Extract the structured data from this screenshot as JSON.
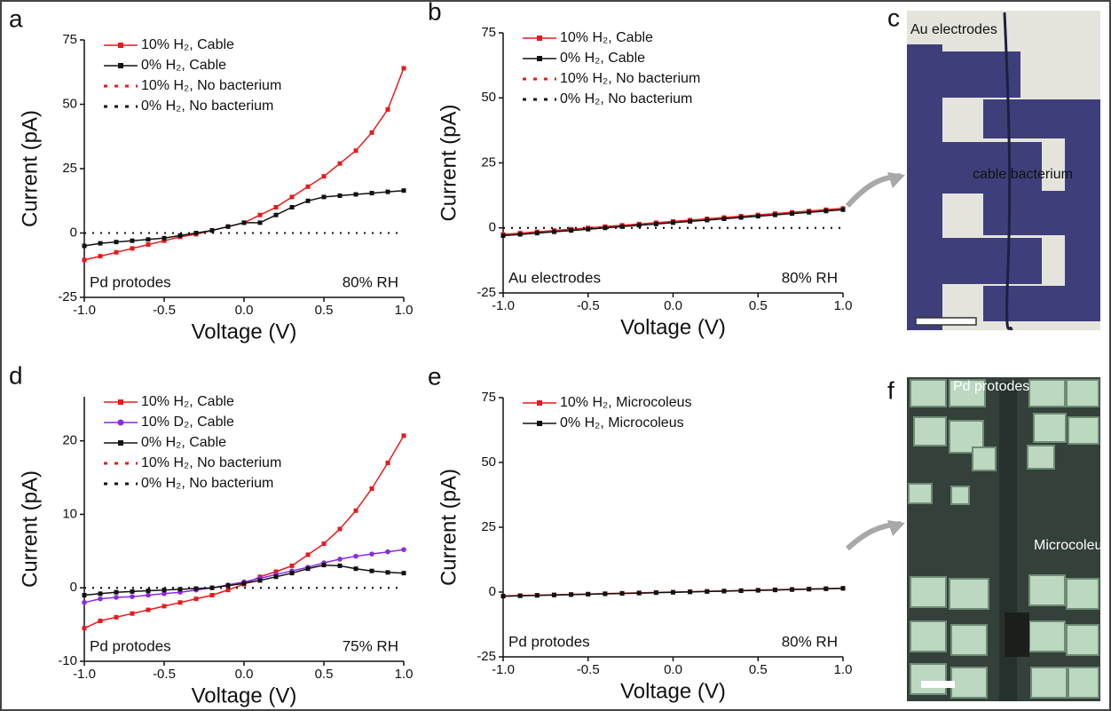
{
  "chart_data": [
    {
      "type": "line",
      "label": "a",
      "xlabel": "Voltage (V)",
      "ylabel": "Current (pA)",
      "xlim": [
        -1,
        1
      ],
      "xticks": [
        {
          "value": -1,
          "label": "-1.0"
        },
        {
          "value": -0.5,
          "label": "-0.5"
        },
        {
          "value": 0,
          "label": "0.0"
        },
        {
          "value": 0.5,
          "label": "0.5"
        },
        {
          "value": 1,
          "label": "1.0"
        }
      ],
      "ylim": [
        -25,
        75
      ],
      "yticks": [
        -25,
        0,
        25,
        50,
        75
      ],
      "legend": "upper-left",
      "x": [
        -1,
        -0.9,
        -0.8,
        -0.7,
        -0.6,
        -0.5,
        -0.4,
        -0.3,
        -0.2,
        -0.1,
        0,
        0.1,
        0.2,
        0.3,
        0.4,
        0.5,
        0.6,
        0.7,
        0.8,
        0.9,
        1
      ],
      "series": [
        {
          "name": "10% H₂, Cable",
          "color": "#e8191c",
          "style": "solid",
          "marker": "square",
          "values": [
            -10.5,
            -9,
            -7.5,
            -6,
            -4.5,
            -3,
            -1.5,
            -0.5,
            1,
            2.5,
            4,
            7,
            10,
            14,
            18,
            22,
            27,
            32,
            39,
            48,
            64
          ]
        },
        {
          "name": "0% H₂, Cable",
          "color": "#111111",
          "style": "solid",
          "marker": "square",
          "values": [
            -5,
            -4,
            -3.5,
            -3,
            -2.5,
            -2,
            -1,
            0,
            1,
            2.5,
            4,
            4,
            7,
            10,
            12.5,
            14,
            14.5,
            15,
            15.5,
            16,
            16.5
          ]
        },
        {
          "name": "10% H₂, No bacterium",
          "color": "#e8191c",
          "style": "dotted",
          "marker": "none",
          "values": [
            0,
            0,
            0,
            0,
            0,
            0,
            0,
            0,
            0,
            0,
            0,
            0,
            0,
            0,
            0,
            0,
            0,
            0,
            0,
            0,
            0
          ]
        },
        {
          "name": "0% H₂, No bacterium",
          "color": "#111111",
          "style": "dotted",
          "marker": "none",
          "values": [
            0,
            0,
            0,
            0,
            0,
            0,
            0,
            0,
            0,
            0,
            0,
            0,
            0,
            0,
            0,
            0,
            0,
            0,
            0,
            0,
            0
          ]
        }
      ],
      "annotations": [
        "Pd protodes",
        "80% RH"
      ]
    },
    {
      "type": "line",
      "label": "b",
      "xlabel": "Voltage (V)",
      "ylabel": "Current (pA)",
      "xlim": [
        -1,
        1
      ],
      "xticks": [
        {
          "value": -1,
          "label": "-1.0"
        },
        {
          "value": -0.5,
          "label": "-0.5"
        },
        {
          "value": 0,
          "label": "0.0"
        },
        {
          "value": 0.5,
          "label": "0.5"
        },
        {
          "value": 1,
          "label": "1.0"
        }
      ],
      "ylim": [
        -25,
        75
      ],
      "yticks": [
        -25,
        0,
        25,
        50,
        75
      ],
      "legend": "upper-left",
      "x": [
        -1,
        -0.9,
        -0.8,
        -0.7,
        -0.6,
        -0.5,
        -0.4,
        -0.3,
        -0.2,
        -0.1,
        0,
        0.1,
        0.2,
        0.3,
        0.4,
        0.5,
        0.6,
        0.7,
        0.8,
        0.9,
        1
      ],
      "series": [
        {
          "name": "10% H₂, Cable",
          "color": "#e8191c",
          "style": "solid",
          "marker": "square",
          "values": [
            -2.5,
            -2,
            -1.5,
            -1,
            -0.5,
            0,
            0.5,
            1,
            1.5,
            2,
            2.5,
            3,
            3.5,
            4,
            4.5,
            5,
            5.5,
            6,
            6.5,
            7,
            7.5
          ]
        },
        {
          "name": "0% H₂, Cable",
          "color": "#111111",
          "style": "solid",
          "marker": "square",
          "values": [
            -3,
            -2.5,
            -2,
            -1.5,
            -1,
            -0.5,
            0,
            0.5,
            1,
            1.5,
            2,
            2.5,
            3,
            3.5,
            4,
            4.5,
            5,
            5.5,
            6,
            6.5,
            7
          ]
        },
        {
          "name": "10% H₂, No bacterium",
          "color": "#e8191c",
          "style": "dotted",
          "marker": "none",
          "values": [
            0,
            0,
            0,
            0,
            0,
            0,
            0,
            0,
            0,
            0,
            0,
            0,
            0,
            0,
            0,
            0,
            0,
            0,
            0,
            0,
            0
          ]
        },
        {
          "name": "0% H₂, No bacterium",
          "color": "#111111",
          "style": "dotted",
          "marker": "none",
          "values": [
            0,
            0,
            0,
            0,
            0,
            0,
            0,
            0,
            0,
            0,
            0,
            0,
            0,
            0,
            0,
            0,
            0,
            0,
            0,
            0,
            0
          ]
        }
      ],
      "annotations": [
        "Au electrodes",
        "80% RH"
      ]
    },
    {
      "type": "line",
      "label": "d",
      "xlabel": "Voltage (V)",
      "ylabel": "Current (pA)",
      "xlim": [
        -1,
        1
      ],
      "xticks": [
        {
          "value": -1,
          "label": "-1.0"
        },
        {
          "value": -0.5,
          "label": "-0.5"
        },
        {
          "value": 0,
          "label": "0.0"
        },
        {
          "value": 0.5,
          "label": "0.5"
        },
        {
          "value": 1,
          "label": "1.0"
        }
      ],
      "ylim": [
        -10,
        26
      ],
      "yticks": [
        -10,
        0,
        10,
        20
      ],
      "legend": "upper-left",
      "x": [
        -1,
        -0.9,
        -0.8,
        -0.7,
        -0.6,
        -0.5,
        -0.4,
        -0.3,
        -0.2,
        -0.1,
        0,
        0.1,
        0.2,
        0.3,
        0.4,
        0.5,
        0.6,
        0.7,
        0.8,
        0.9,
        1
      ],
      "series": [
        {
          "name": "10% H₂, Cable",
          "color": "#e8191c",
          "style": "solid",
          "marker": "square",
          "values": [
            -5.5,
            -4.5,
            -4,
            -3.5,
            -3,
            -2.5,
            -2,
            -1.5,
            -1,
            -0.3,
            0.5,
            1.5,
            2.2,
            3,
            4.5,
            6,
            8,
            10.5,
            13.5,
            17,
            20.7
          ]
        },
        {
          "name": "10% D₂, Cable",
          "color": "#8a2be2",
          "style": "solid",
          "marker": "circle",
          "values": [
            -2,
            -1.5,
            -1.3,
            -1.2,
            -1,
            -0.8,
            -0.6,
            -0.3,
            0,
            0.4,
            0.8,
            1.3,
            1.8,
            2.3,
            2.8,
            3.4,
            3.9,
            4.3,
            4.6,
            4.9,
            5.2
          ]
        },
        {
          "name": "0% H₂, Cable",
          "color": "#111111",
          "style": "solid",
          "marker": "square",
          "values": [
            -1,
            -0.8,
            -0.6,
            -0.5,
            -0.4,
            -0.3,
            -0.2,
            -0.1,
            0,
            0.3,
            0.6,
            1,
            1.5,
            2,
            2.6,
            3.1,
            3,
            2.6,
            2.3,
            2.1,
            2
          ]
        },
        {
          "name": "10% H₂, No bacterium",
          "color": "#e8191c",
          "style": "dotted",
          "marker": "none",
          "values": [
            0,
            0,
            0,
            0,
            0,
            0,
            0,
            0,
            0,
            0,
            0,
            0,
            0,
            0,
            0,
            0,
            0,
            0,
            0,
            0,
            0
          ]
        },
        {
          "name": "0% H₂, No bacterium",
          "color": "#111111",
          "style": "dotted",
          "marker": "none",
          "values": [
            0,
            0,
            0,
            0,
            0,
            0,
            0,
            0,
            0,
            0,
            0,
            0,
            0,
            0,
            0,
            0,
            0,
            0,
            0,
            0,
            0
          ]
        }
      ],
      "annotations": [
        "Pd protodes",
        "75% RH"
      ]
    },
    {
      "type": "line",
      "label": "e",
      "xlabel": "Voltage (V)",
      "ylabel": "Current (pA)",
      "xlim": [
        -1,
        1
      ],
      "xticks": [
        {
          "value": -1,
          "label": "-1.0"
        },
        {
          "value": -0.5,
          "label": "-0.5"
        },
        {
          "value": 0,
          "label": "0.0"
        },
        {
          "value": 0.5,
          "label": "0.5"
        },
        {
          "value": 1,
          "label": "1.0"
        }
      ],
      "ylim": [
        -25,
        75
      ],
      "yticks": [
        -25,
        0,
        25,
        50,
        75
      ],
      "legend": "upper-left",
      "x": [
        -1,
        -0.9,
        -0.8,
        -0.7,
        -0.6,
        -0.5,
        -0.4,
        -0.3,
        -0.2,
        -0.1,
        0,
        0.1,
        0.2,
        0.3,
        0.4,
        0.5,
        0.6,
        0.7,
        0.8,
        0.9,
        1
      ],
      "series": [
        {
          "name": "10% H₂, Microcoleus",
          "color": "#e8191c",
          "style": "solid",
          "marker": "square",
          "values": [
            -1.5,
            -1.35,
            -1.2,
            -1.05,
            -0.9,
            -0.75,
            -0.6,
            -0.45,
            -0.3,
            -0.15,
            0,
            0.15,
            0.3,
            0.45,
            0.6,
            0.75,
            0.9,
            1.05,
            1.2,
            1.35,
            1.5
          ]
        },
        {
          "name": "0% H₂, Microcoleus",
          "color": "#111111",
          "style": "solid",
          "marker": "square",
          "values": [
            -1.6,
            -1.45,
            -1.3,
            -1.15,
            -1,
            -0.85,
            -0.7,
            -0.55,
            -0.4,
            -0.25,
            -0.1,
            0.05,
            0.2,
            0.35,
            0.5,
            0.65,
            0.8,
            0.95,
            1.1,
            1.25,
            1.4
          ]
        }
      ],
      "annotations": [
        "Pd protodes",
        "80% RH"
      ]
    }
  ],
  "images": [
    {
      "label": "c",
      "texts": [
        "Au electrodes",
        "cable bacterium"
      ]
    },
    {
      "label": "f",
      "texts": [
        "Pd protodes",
        "Microcoleus"
      ]
    }
  ]
}
